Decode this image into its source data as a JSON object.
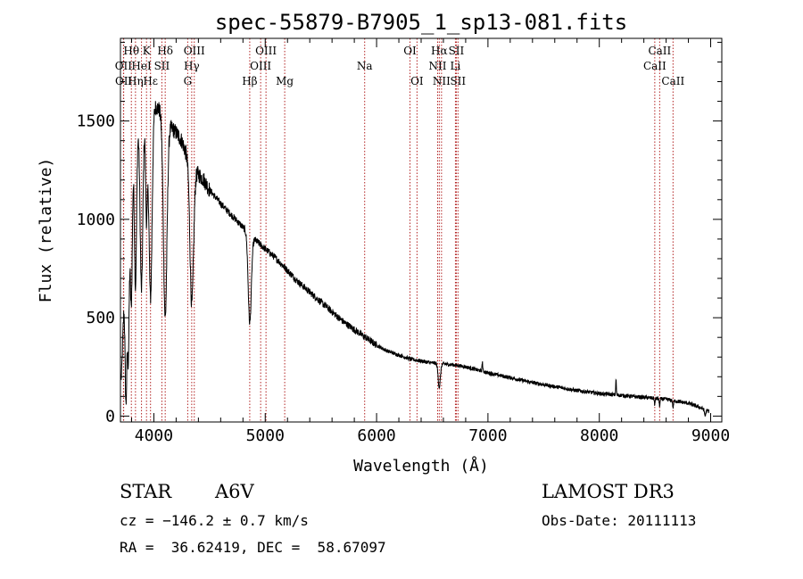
{
  "chart_data": {
    "type": "line",
    "title": "spec-55879-B7905_1_sp13-081.fits",
    "xlabel": "Wavelength (Å)",
    "ylabel": "Flux (relative)",
    "xlim": [
      3700,
      9100
    ],
    "ylim": [
      -30,
      1920
    ],
    "xticks": [
      4000,
      5000,
      6000,
      7000,
      8000,
      9000
    ],
    "yticks": [
      0,
      500,
      1000,
      1500
    ],
    "tick_labels_x": [
      "4000",
      "5000",
      "6000",
      "7000",
      "8000",
      "9000"
    ],
    "tick_labels_y": [
      "0",
      "500",
      "1000",
      "1500"
    ],
    "line_color": "#000000",
    "marker_color": "#b22222",
    "continuum": [
      [
        3710,
        200
      ],
      [
        3730,
        550
      ],
      [
        3760,
        900
      ],
      [
        3790,
        1200
      ],
      [
        3800,
        1350
      ],
      [
        3830,
        1450
      ],
      [
        3860,
        1480
      ],
      [
        3900,
        1500
      ],
      [
        3950,
        1530
      ],
      [
        4000,
        1580
      ],
      [
        4050,
        1560
      ],
      [
        4100,
        1500
      ],
      [
        4150,
        1470
      ],
      [
        4200,
        1440
      ],
      [
        4250,
        1400
      ],
      [
        4300,
        1320
      ],
      [
        4350,
        1260
      ],
      [
        4400,
        1230
      ],
      [
        4450,
        1200
      ],
      [
        4500,
        1150
      ],
      [
        4600,
        1080
      ],
      [
        4700,
        1020
      ],
      [
        4800,
        960
      ],
      [
        4900,
        900
      ],
      [
        5000,
        850
      ],
      [
        5100,
        800
      ],
      [
        5200,
        740
      ],
      [
        5300,
        680
      ],
      [
        5400,
        630
      ],
      [
        5500,
        580
      ],
      [
        5600,
        530
      ],
      [
        5700,
        480
      ],
      [
        5800,
        440
      ],
      [
        5900,
        400
      ],
      [
        6000,
        360
      ],
      [
        6100,
        330
      ],
      [
        6200,
        310
      ],
      [
        6300,
        290
      ],
      [
        6400,
        280
      ],
      [
        6500,
        270
      ],
      [
        6600,
        265
      ],
      [
        6700,
        260
      ],
      [
        6800,
        250
      ],
      [
        6900,
        235
      ],
      [
        7000,
        220
      ],
      [
        7200,
        195
      ],
      [
        7400,
        170
      ],
      [
        7600,
        150
      ],
      [
        7800,
        130
      ],
      [
        8000,
        115
      ],
      [
        8200,
        105
      ],
      [
        8400,
        95
      ],
      [
        8600,
        85
      ],
      [
        8800,
        65
      ],
      [
        8900,
        45
      ],
      [
        8980,
        25
      ]
    ],
    "absorption": [
      {
        "center": 3750,
        "depth": 700,
        "width": 8
      },
      {
        "center": 3771,
        "depth": 700,
        "width": 8
      },
      {
        "center": 3798,
        "depth": 750,
        "width": 9
      },
      {
        "center": 3835,
        "depth": 800,
        "width": 10
      },
      {
        "center": 3889,
        "depth": 850,
        "width": 12
      },
      {
        "center": 3934,
        "depth": 500,
        "width": 8
      },
      {
        "center": 3970,
        "depth": 950,
        "width": 14
      },
      {
        "center": 4102,
        "depth": 1000,
        "width": 16
      },
      {
        "center": 4340,
        "depth": 700,
        "width": 16
      },
      {
        "center": 4861,
        "depth": 450,
        "width": 14
      },
      {
        "center": 6563,
        "depth": 120,
        "width": 10
      },
      {
        "center": 8498,
        "depth": 30,
        "width": 4
      },
      {
        "center": 8542,
        "depth": 35,
        "width": 4
      },
      {
        "center": 8662,
        "depth": 35,
        "width": 4
      },
      {
        "center": 8950,
        "depth": 30,
        "width": 6
      }
    ],
    "emission": [
      {
        "center": 6950,
        "height": 50,
        "width": 3
      },
      {
        "center": 8150,
        "height": 80,
        "width": 3
      }
    ],
    "noise_amplitude": 14,
    "line_markers": [
      {
        "label": "Hθ",
        "wave": 3798,
        "row": 1
      },
      {
        "label": "K",
        "wave": 3934,
        "row": 1
      },
      {
        "label": "Hδ",
        "wave": 4102,
        "row": 1
      },
      {
        "label": "OIII",
        "wave": 4363,
        "row": 1
      },
      {
        "label": "OIII",
        "wave": 5007,
        "row": 1
      },
      {
        "label": "OI",
        "wave": 6300,
        "row": 1
      },
      {
        "label": "Hα",
        "wave": 6563,
        "row": 1
      },
      {
        "label": "SII",
        "wave": 6716,
        "row": 1
      },
      {
        "label": "CaII",
        "wave": 8542,
        "row": 1
      },
      {
        "label": "OII",
        "wave": 3727,
        "row": 2
      },
      {
        "label": "HeI",
        "wave": 3889,
        "row": 2
      },
      {
        "label": "SII",
        "wave": 4072,
        "row": 2
      },
      {
        "label": "Hγ",
        "wave": 4340,
        "row": 2
      },
      {
        "label": "OIII",
        "wave": 4959,
        "row": 2
      },
      {
        "label": "Na",
        "wave": 5893,
        "row": 2
      },
      {
        "label": "NII",
        "wave": 6548,
        "row": 2
      },
      {
        "label": "Li",
        "wave": 6708,
        "row": 2
      },
      {
        "label": "CaII",
        "wave": 8498,
        "row": 2
      },
      {
        "label": "OII",
        "wave": 3729,
        "row": 3
      },
      {
        "label": "Hη",
        "wave": 3835,
        "row": 3
      },
      {
        "label": "Hε",
        "wave": 3970,
        "row": 3
      },
      {
        "label": "G",
        "wave": 4304,
        "row": 3
      },
      {
        "label": "Hβ",
        "wave": 4861,
        "row": 3
      },
      {
        "label": "Mg",
        "wave": 5175,
        "row": 3
      },
      {
        "label": "OI",
        "wave": 6363,
        "row": 3
      },
      {
        "label": "NII",
        "wave": 6583,
        "row": 3
      },
      {
        "label": "SII",
        "wave": 6731,
        "row": 3
      },
      {
        "label": "CaII",
        "wave": 8662,
        "row": 3
      }
    ]
  },
  "info": {
    "object_class": "STAR",
    "subclass": "A6V",
    "survey": "LAMOST DR3",
    "redshift": "cz = −146.2 ± 0.7 km/s",
    "obs_date": "Obs-Date: 20111113",
    "coords": "RA =  36.62419, DEC =  58.67097"
  }
}
